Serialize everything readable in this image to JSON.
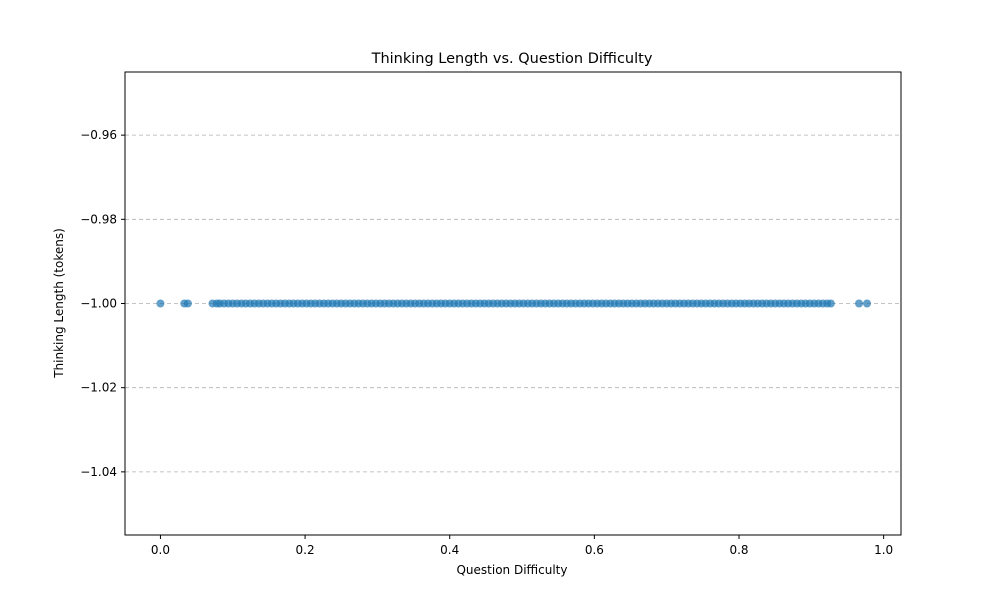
{
  "chart_data": {
    "type": "scatter",
    "title": "Thinking Length vs. Question Difficulty",
    "xlabel": "Question Difficulty",
    "ylabel": "Thinking Length (tokens)",
    "xlim": [
      -0.049,
      1.024
    ],
    "ylim": [
      -1.055,
      -0.945
    ],
    "xticks": [
      0.0,
      0.2,
      0.4,
      0.6,
      0.8,
      1.0
    ],
    "xtick_labels": [
      "0.0",
      "0.2",
      "0.4",
      "0.6",
      "0.8",
      "1.0"
    ],
    "yticks": [
      -0.96,
      -0.98,
      -1.0,
      -1.02,
      -1.04
    ],
    "ytick_labels": [
      "−0.96",
      "−0.98",
      "−1.00",
      "−1.02",
      "−1.04"
    ],
    "grid": "y-dashed",
    "marker_color": "#1f77b4",
    "marker_alpha": 0.7,
    "points_y": -1.0,
    "points_x": [
      0.0,
      0.033,
      0.038,
      0.072,
      0.078,
      0.082,
      0.088,
      0.094,
      0.1,
      0.106,
      0.112,
      0.118,
      0.124,
      0.13,
      0.136,
      0.142,
      0.148,
      0.154,
      0.16,
      0.166,
      0.172,
      0.178,
      0.184,
      0.19,
      0.196,
      0.202,
      0.208,
      0.214,
      0.22,
      0.226,
      0.232,
      0.238,
      0.244,
      0.25,
      0.256,
      0.262,
      0.268,
      0.274,
      0.28,
      0.286,
      0.292,
      0.298,
      0.304,
      0.31,
      0.316,
      0.322,
      0.328,
      0.334,
      0.34,
      0.346,
      0.352,
      0.358,
      0.364,
      0.37,
      0.376,
      0.382,
      0.388,
      0.394,
      0.4,
      0.406,
      0.412,
      0.418,
      0.424,
      0.43,
      0.436,
      0.442,
      0.448,
      0.454,
      0.46,
      0.466,
      0.472,
      0.478,
      0.484,
      0.49,
      0.496,
      0.502,
      0.508,
      0.514,
      0.52,
      0.526,
      0.532,
      0.538,
      0.544,
      0.55,
      0.556,
      0.562,
      0.568,
      0.574,
      0.58,
      0.586,
      0.592,
      0.598,
      0.604,
      0.61,
      0.616,
      0.622,
      0.628,
      0.634,
      0.64,
      0.646,
      0.652,
      0.658,
      0.664,
      0.67,
      0.676,
      0.682,
      0.688,
      0.694,
      0.7,
      0.706,
      0.712,
      0.718,
      0.724,
      0.73,
      0.736,
      0.742,
      0.748,
      0.754,
      0.76,
      0.766,
      0.772,
      0.778,
      0.784,
      0.79,
      0.796,
      0.802,
      0.808,
      0.814,
      0.82,
      0.826,
      0.832,
      0.838,
      0.844,
      0.85,
      0.856,
      0.862,
      0.868,
      0.874,
      0.88,
      0.886,
      0.892,
      0.898,
      0.904,
      0.91,
      0.916,
      0.922,
      0.927,
      0.966,
      0.977
    ]
  }
}
